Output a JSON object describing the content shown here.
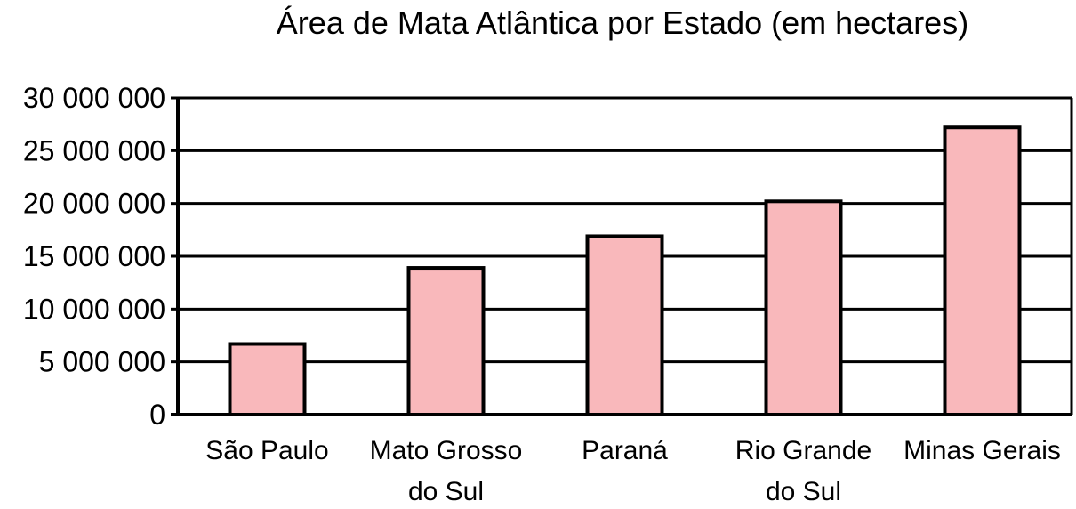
{
  "chart_data": {
    "type": "bar",
    "title": "Área de Mata Atlântica por Estado (em hectares)",
    "xlabel": "",
    "ylabel": "",
    "categories": [
      [
        "São Paulo"
      ],
      [
        "Mato Grosso",
        "do Sul"
      ],
      [
        "Paraná"
      ],
      [
        "Rio Grande",
        "do Sul"
      ],
      [
        "Minas Gerais"
      ]
    ],
    "values": [
      6700000,
      13900000,
      16900000,
      20200000,
      27200000
    ],
    "ylim": [
      0,
      30000000
    ],
    "yticks": [
      0,
      5000000,
      10000000,
      15000000,
      20000000,
      25000000,
      30000000
    ],
    "ytick_labels": [
      "0",
      "5 000 000",
      "10 000 000",
      "15 000 000",
      "20 000 000",
      "25 000 000",
      "30 000 000"
    ],
    "grid": true,
    "legend": "none",
    "colors": {
      "bar_fill": "#f9b8bb",
      "bar_stroke": "#000000",
      "grid": "#000000"
    }
  }
}
